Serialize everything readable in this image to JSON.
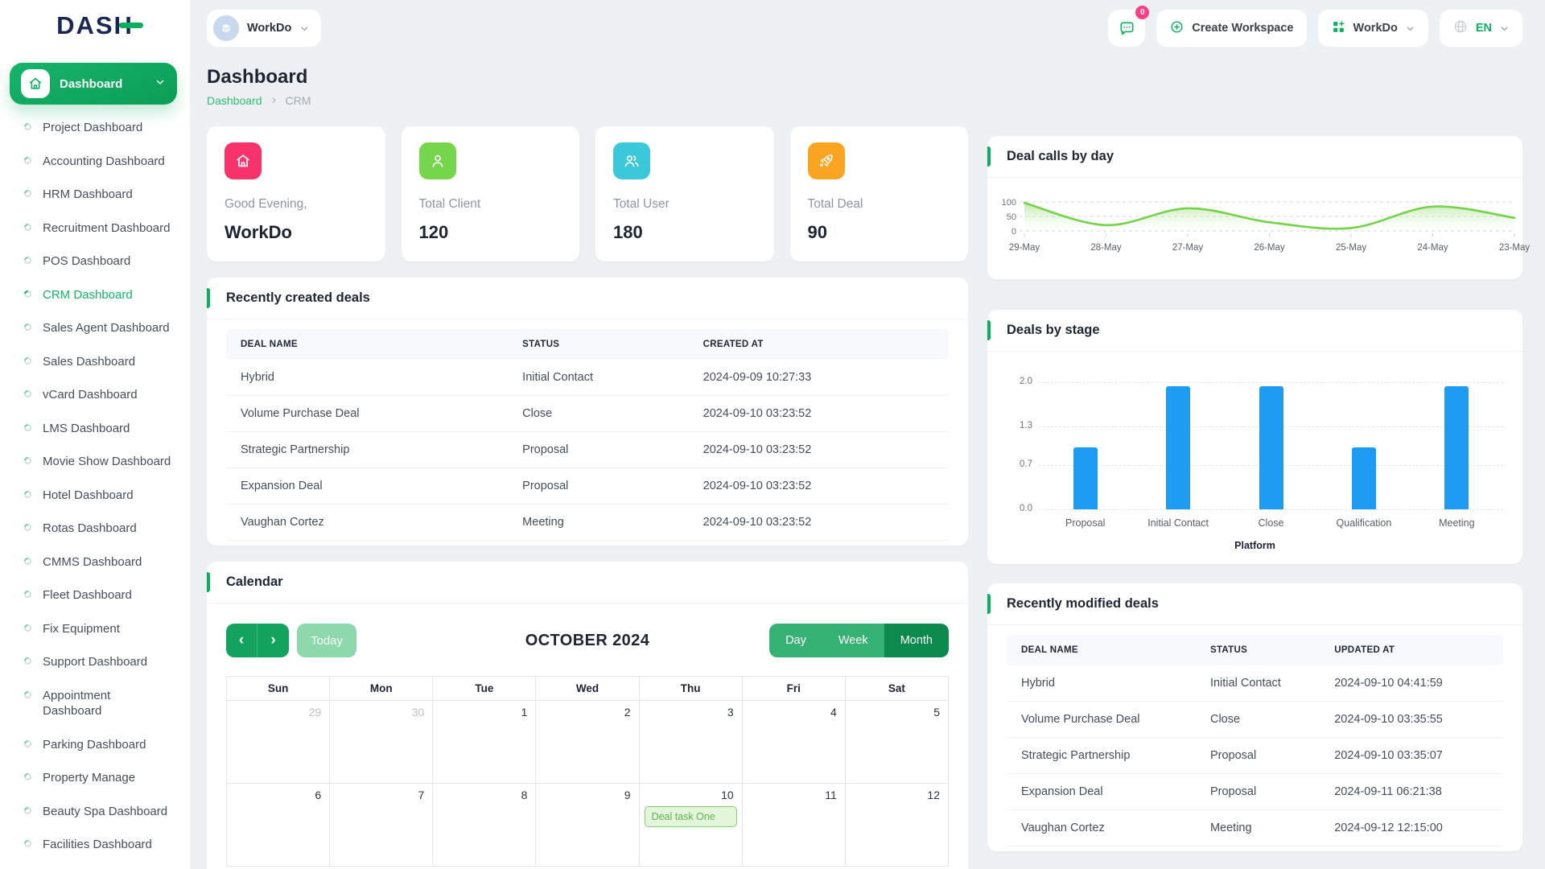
{
  "brand": {
    "name": "DASH"
  },
  "topbar": {
    "workspace_chip": {
      "label": "WorkDo"
    },
    "messages_badge": "0",
    "create_workspace_label": "Create Workspace",
    "workspace_menu_label": "WorkDo",
    "language_label": "EN"
  },
  "sidebar": {
    "dashboard_label": "Dashboard",
    "items": [
      {
        "label": "Project Dashboard"
      },
      {
        "label": "Accounting Dashboard"
      },
      {
        "label": "HRM Dashboard"
      },
      {
        "label": "Recruitment Dashboard"
      },
      {
        "label": "POS Dashboard"
      },
      {
        "label": "CRM Dashboard",
        "active": true
      },
      {
        "label": "Sales Agent Dashboard"
      },
      {
        "label": "Sales Dashboard"
      },
      {
        "label": "vCard Dashboard"
      },
      {
        "label": "LMS Dashboard"
      },
      {
        "label": "Movie Show Dashboard"
      },
      {
        "label": "Hotel Dashboard"
      },
      {
        "label": "Rotas Dashboard"
      },
      {
        "label": "CMMS Dashboard"
      },
      {
        "label": "Fleet Dashboard"
      },
      {
        "label": "Fix Equipment"
      },
      {
        "label": "Support Dashboard"
      },
      {
        "label": "Appointment Dashboard",
        "two_line": true
      },
      {
        "label": "Parking Dashboard"
      },
      {
        "label": "Property Manage"
      },
      {
        "label": "Beauty Spa Dashboard"
      },
      {
        "label": "Facilities Dashboard"
      }
    ]
  },
  "page": {
    "title": "Dashboard",
    "breadcrumb_root": "Dashboard",
    "breadcrumb_current": "CRM"
  },
  "stats": [
    {
      "label": "Good Evening,",
      "value": "WorkDo",
      "icon": "home-icon",
      "color": "#f8336b"
    },
    {
      "label": "Total Client",
      "value": "120",
      "icon": "user-icon",
      "color": "#76d64b"
    },
    {
      "label": "Total User",
      "value": "180",
      "icon": "users-icon",
      "color": "#3bc8db"
    },
    {
      "label": "Total Deal",
      "value": "90",
      "icon": "rocket-icon",
      "color": "#f9a521"
    }
  ],
  "cards": {
    "deal_calls_title": "Deal calls by day",
    "recent_created_title": "Recently created deals",
    "deals_by_stage_title": "Deals by stage",
    "calendar_title": "Calendar",
    "recent_modified_title": "Recently modified deals"
  },
  "recent_created": {
    "columns": [
      "DEAL NAME",
      "STATUS",
      "CREATED AT"
    ],
    "rows": [
      [
        "Hybrid",
        "Initial Contact",
        "2024-09-09 10:27:33"
      ],
      [
        "Volume Purchase Deal",
        "Close",
        "2024-09-10 03:23:52"
      ],
      [
        "Strategic Partnership",
        "Proposal",
        "2024-09-10 03:23:52"
      ],
      [
        "Expansion Deal",
        "Proposal",
        "2024-09-10 03:23:52"
      ],
      [
        "Vaughan Cortez",
        "Meeting",
        "2024-09-10 03:23:52"
      ]
    ]
  },
  "recent_modified": {
    "columns": [
      "DEAL NAME",
      "STATUS",
      "UPDATED AT"
    ],
    "rows": [
      [
        "Hybrid",
        "Initial Contact",
        "2024-09-10 04:41:59"
      ],
      [
        "Volume Purchase Deal",
        "Close",
        "2024-09-10 03:35:55"
      ],
      [
        "Strategic Partnership",
        "Proposal",
        "2024-09-10 03:35:07"
      ],
      [
        "Expansion Deal",
        "Proposal",
        "2024-09-11 06:21:38"
      ],
      [
        "Vaughan Cortez",
        "Meeting",
        "2024-09-12 12:15:00"
      ]
    ]
  },
  "calendar": {
    "prev": "‹",
    "next": "›",
    "today": "Today",
    "month_title": "OCTOBER 2024",
    "views": [
      "Day",
      "Week",
      "Month"
    ],
    "active_view": "Month",
    "day_headers": [
      "Sun",
      "Mon",
      "Tue",
      "Wed",
      "Thu",
      "Fri",
      "Sat"
    ],
    "weeks": [
      [
        {
          "n": "29",
          "muted": true
        },
        {
          "n": "30",
          "muted": true
        },
        {
          "n": "1"
        },
        {
          "n": "2"
        },
        {
          "n": "3"
        },
        {
          "n": "4"
        },
        {
          "n": "5"
        }
      ],
      [
        {
          "n": "6"
        },
        {
          "n": "7"
        },
        {
          "n": "8"
        },
        {
          "n": "9"
        },
        {
          "n": "10",
          "event": "Deal task One"
        },
        {
          "n": "11"
        },
        {
          "n": "12"
        }
      ]
    ]
  },
  "chart_data": [
    {
      "type": "area",
      "title": "Deal calls by day",
      "x": [
        "29-May",
        "28-May",
        "27-May",
        "26-May",
        "25-May",
        "24-May",
        "23-May"
      ],
      "values": [
        97,
        20,
        78,
        30,
        10,
        84,
        45
      ],
      "ylim": [
        0,
        100
      ],
      "yticks": [
        100,
        50,
        0
      ],
      "line_color": "#74d348",
      "fill_top": "rgba(130,216,88,0.5)",
      "fill_bottom": "rgba(240,250,235,0.08)",
      "grid": "dashed"
    },
    {
      "type": "bar",
      "title": "Deals by stage",
      "categories": [
        "Proposal",
        "Initial Contact",
        "Close",
        "Qualification",
        "Meeting"
      ],
      "values": [
        1,
        2,
        2,
        1,
        2
      ],
      "xlabel": "Platform",
      "ylim": [
        0,
        2
      ],
      "yticks": [
        2.0,
        1.3,
        0.7,
        0.0
      ],
      "bar_color": "#1e9bf3",
      "grid": "dashed"
    }
  ]
}
